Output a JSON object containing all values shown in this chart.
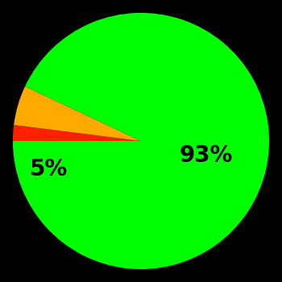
{
  "slices": [
    2,
    5,
    93
  ],
  "colors": [
    "#ff2000",
    "#ffaa00",
    "#00ff00"
  ],
  "labels": [
    "",
    "5%",
    "93%"
  ],
  "label_positions": [
    null,
    [
      -0.72,
      -0.22
    ],
    [
      0.3,
      0.0
    ]
  ],
  "background_color": "#000000",
  "startangle": 180,
  "label_fontsize": 20,
  "label_color": "#000000",
  "figsize": [
    3.5,
    3.5
  ],
  "dpi": 100
}
